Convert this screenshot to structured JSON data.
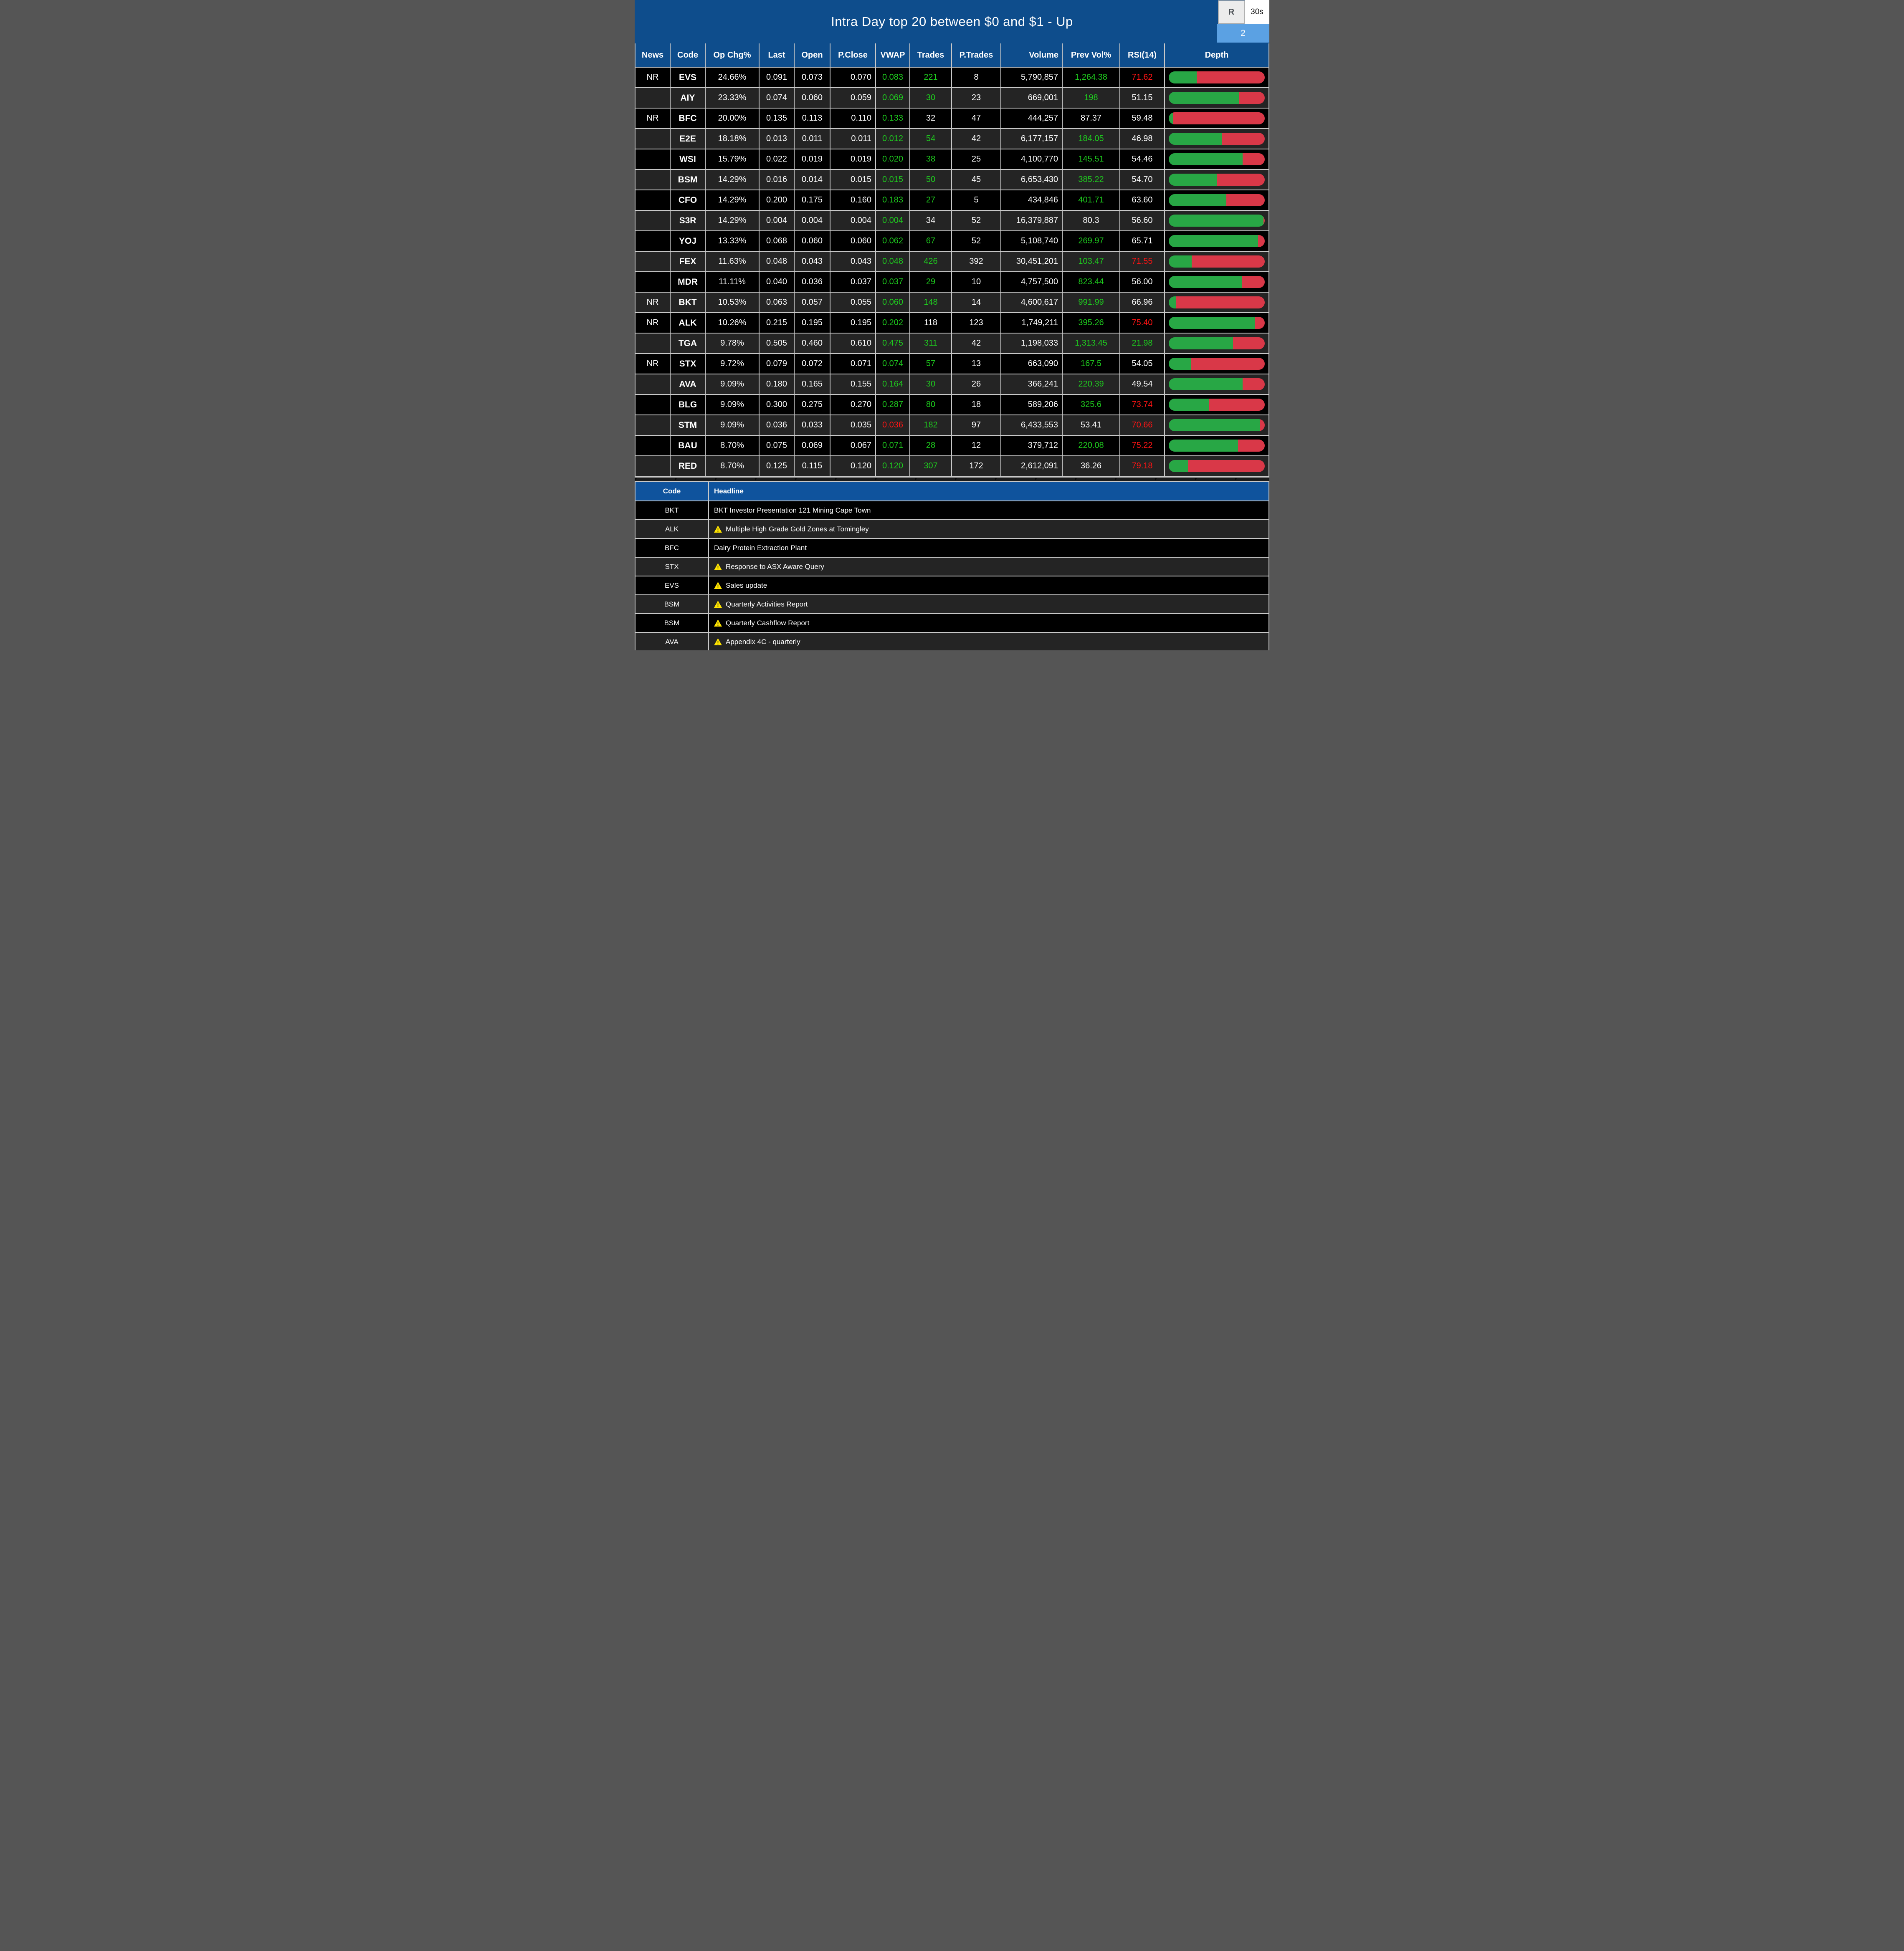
{
  "title": "Intra Day top 20 between $0 and $1 - Up",
  "toolbar": {
    "refresh_label": "R",
    "interval_label": "30s",
    "badge_count": "2"
  },
  "colors": {
    "title_blue": "#0e4d8c",
    "panel_header_blue": "#0f539d",
    "green_text": "#1ecb1e",
    "red_text": "#ff1414",
    "bar_green": "#28a745",
    "bar_red": "#d93848",
    "badge_blue": "#5ba1e3",
    "grid_gray": "#c8c8c8",
    "row_dark": "#000000",
    "row_light": "#242424",
    "warning_yellow": "#ffe400"
  },
  "table": {
    "columns": [
      "News",
      "Code",
      "Op Chg%",
      "Last",
      "Open",
      "P.Close",
      "VWAP",
      "Trades",
      "P.Trades",
      "Volume",
      "Prev Vol%",
      "RSI(14)",
      "Depth"
    ],
    "rows": [
      {
        "news": "NR",
        "code": "EVS",
        "op_chg": "24.66%",
        "last": "0.091",
        "open": "0.073",
        "p_close": "0.070",
        "vwap": "0.083",
        "vwap_color": "green",
        "trades": "221",
        "trades_color": "green",
        "p_trades": "8",
        "volume": "5,790,857",
        "prev_vol": "1,264.38",
        "prev_vol_color": "green",
        "rsi": "71.62",
        "rsi_color": "red",
        "depth_buy_pct": 29
      },
      {
        "news": "",
        "code": "AIY",
        "op_chg": "23.33%",
        "last": "0.074",
        "open": "0.060",
        "p_close": "0.059",
        "vwap": "0.069",
        "vwap_color": "green",
        "trades": "30",
        "trades_color": "green",
        "p_trades": "23",
        "volume": "669,001",
        "prev_vol": "198",
        "prev_vol_color": "green",
        "rsi": "51.15",
        "rsi_color": "",
        "depth_buy_pct": 73
      },
      {
        "news": "NR",
        "code": "BFC",
        "op_chg": "20.00%",
        "last": "0.135",
        "open": "0.113",
        "p_close": "0.110",
        "vwap": "0.133",
        "vwap_color": "green",
        "trades": "32",
        "trades_color": "",
        "p_trades": "47",
        "volume": "444,257",
        "prev_vol": "87.37",
        "prev_vol_color": "",
        "rsi": "59.48",
        "rsi_color": "",
        "depth_buy_pct": 4.5
      },
      {
        "news": "",
        "code": "E2E",
        "op_chg": "18.18%",
        "last": "0.013",
        "open": "0.011",
        "p_close": "0.011",
        "vwap": "0.012",
        "vwap_color": "green",
        "trades": "54",
        "trades_color": "green",
        "p_trades": "42",
        "volume": "6,177,157",
        "prev_vol": "184.05",
        "prev_vol_color": "green",
        "rsi": "46.98",
        "rsi_color": "",
        "depth_buy_pct": 55
      },
      {
        "news": "",
        "code": "WSI",
        "op_chg": "15.79%",
        "last": "0.022",
        "open": "0.019",
        "p_close": "0.019",
        "vwap": "0.020",
        "vwap_color": "green",
        "trades": "38",
        "trades_color": "green",
        "p_trades": "25",
        "volume": "4,100,770",
        "prev_vol": "145.51",
        "prev_vol_color": "green",
        "rsi": "54.46",
        "rsi_color": "",
        "depth_buy_pct": 77
      },
      {
        "news": "",
        "code": "BSM",
        "op_chg": "14.29%",
        "last": "0.016",
        "open": "0.014",
        "p_close": "0.015",
        "vwap": "0.015",
        "vwap_color": "green",
        "trades": "50",
        "trades_color": "green",
        "p_trades": "45",
        "volume": "6,653,430",
        "prev_vol": "385.22",
        "prev_vol_color": "green",
        "rsi": "54.70",
        "rsi_color": "",
        "depth_buy_pct": 50
      },
      {
        "news": "",
        "code": "CFO",
        "op_chg": "14.29%",
        "last": "0.200",
        "open": "0.175",
        "p_close": "0.160",
        "vwap": "0.183",
        "vwap_color": "green",
        "trades": "27",
        "trades_color": "green",
        "p_trades": "5",
        "volume": "434,846",
        "prev_vol": "401.71",
        "prev_vol_color": "green",
        "rsi": "63.60",
        "rsi_color": "",
        "depth_buy_pct": 60
      },
      {
        "news": "",
        "code": "S3R",
        "op_chg": "14.29%",
        "last": "0.004",
        "open": "0.004",
        "p_close": "0.004",
        "vwap": "0.004",
        "vwap_color": "green",
        "trades": "34",
        "trades_color": "",
        "p_trades": "52",
        "volume": "16,379,887",
        "prev_vol": "80.3",
        "prev_vol_color": "",
        "rsi": "56.60",
        "rsi_color": "",
        "depth_buy_pct": 98.5
      },
      {
        "news": "",
        "code": "YOJ",
        "op_chg": "13.33%",
        "last": "0.068",
        "open": "0.060",
        "p_close": "0.060",
        "vwap": "0.062",
        "vwap_color": "green",
        "trades": "67",
        "trades_color": "green",
        "p_trades": "52",
        "volume": "5,108,740",
        "prev_vol": "269.97",
        "prev_vol_color": "green",
        "rsi": "65.71",
        "rsi_color": "",
        "depth_buy_pct": 93
      },
      {
        "news": "",
        "code": "FEX",
        "op_chg": "11.63%",
        "last": "0.048",
        "open": "0.043",
        "p_close": "0.043",
        "vwap": "0.048",
        "vwap_color": "green",
        "trades": "426",
        "trades_color": "green",
        "p_trades": "392",
        "volume": "30,451,201",
        "prev_vol": "103.47",
        "prev_vol_color": "green",
        "rsi": "71.55",
        "rsi_color": "red",
        "depth_buy_pct": 24
      },
      {
        "news": "",
        "code": "MDR",
        "op_chg": "11.11%",
        "last": "0.040",
        "open": "0.036",
        "p_close": "0.037",
        "vwap": "0.037",
        "vwap_color": "green",
        "trades": "29",
        "trades_color": "green",
        "p_trades": "10",
        "volume": "4,757,500",
        "prev_vol": "823.44",
        "prev_vol_color": "green",
        "rsi": "56.00",
        "rsi_color": "",
        "depth_buy_pct": 76
      },
      {
        "news": "NR",
        "code": "BKT",
        "op_chg": "10.53%",
        "last": "0.063",
        "open": "0.057",
        "p_close": "0.055",
        "vwap": "0.060",
        "vwap_color": "green",
        "trades": "148",
        "trades_color": "green",
        "p_trades": "14",
        "volume": "4,600,617",
        "prev_vol": "991.99",
        "prev_vol_color": "green",
        "rsi": "66.96",
        "rsi_color": "",
        "depth_buy_pct": 8
      },
      {
        "news": "NR",
        "code": "ALK",
        "op_chg": "10.26%",
        "last": "0.215",
        "open": "0.195",
        "p_close": "0.195",
        "vwap": "0.202",
        "vwap_color": "green",
        "trades": "118",
        "trades_color": "",
        "p_trades": "123",
        "volume": "1,749,211",
        "prev_vol": "395.26",
        "prev_vol_color": "green",
        "rsi": "75.40",
        "rsi_color": "red",
        "depth_buy_pct": 90
      },
      {
        "news": "",
        "code": "TGA",
        "op_chg": "9.78%",
        "last": "0.505",
        "open": "0.460",
        "p_close": "0.610",
        "vwap": "0.475",
        "vwap_color": "green",
        "trades": "311",
        "trades_color": "green",
        "p_trades": "42",
        "volume": "1,198,033",
        "prev_vol": "1,313.45",
        "prev_vol_color": "green",
        "rsi": "21.98",
        "rsi_color": "green",
        "depth_buy_pct": 67
      },
      {
        "news": "NR",
        "code": "STX",
        "op_chg": "9.72%",
        "last": "0.079",
        "open": "0.072",
        "p_close": "0.071",
        "vwap": "0.074",
        "vwap_color": "green",
        "trades": "57",
        "trades_color": "green",
        "p_trades": "13",
        "volume": "663,090",
        "prev_vol": "167.5",
        "prev_vol_color": "green",
        "rsi": "54.05",
        "rsi_color": "",
        "depth_buy_pct": 23
      },
      {
        "news": "",
        "code": "AVA",
        "op_chg": "9.09%",
        "last": "0.180",
        "open": "0.165",
        "p_close": "0.155",
        "vwap": "0.164",
        "vwap_color": "green",
        "trades": "30",
        "trades_color": "green",
        "p_trades": "26",
        "volume": "366,241",
        "prev_vol": "220.39",
        "prev_vol_color": "green",
        "rsi": "49.54",
        "rsi_color": "",
        "depth_buy_pct": 77
      },
      {
        "news": "",
        "code": "BLG",
        "op_chg": "9.09%",
        "last": "0.300",
        "open": "0.275",
        "p_close": "0.270",
        "vwap": "0.287",
        "vwap_color": "green",
        "trades": "80",
        "trades_color": "green",
        "p_trades": "18",
        "volume": "589,206",
        "prev_vol": "325.6",
        "prev_vol_color": "green",
        "rsi": "73.74",
        "rsi_color": "red",
        "depth_buy_pct": 42
      },
      {
        "news": "",
        "code": "STM",
        "op_chg": "9.09%",
        "last": "0.036",
        "open": "0.033",
        "p_close": "0.035",
        "vwap": "0.036",
        "vwap_color": "red",
        "trades": "182",
        "trades_color": "green",
        "p_trades": "97",
        "volume": "6,433,553",
        "prev_vol": "53.41",
        "prev_vol_color": "",
        "rsi": "70.66",
        "rsi_color": "red",
        "depth_buy_pct": 95
      },
      {
        "news": "",
        "code": "BAU",
        "op_chg": "8.70%",
        "last": "0.075",
        "open": "0.069",
        "p_close": "0.067",
        "vwap": "0.071",
        "vwap_color": "green",
        "trades": "28",
        "trades_color": "green",
        "p_trades": "12",
        "volume": "379,712",
        "prev_vol": "220.08",
        "prev_vol_color": "green",
        "rsi": "75.22",
        "rsi_color": "red",
        "depth_buy_pct": 72
      },
      {
        "news": "",
        "code": "RED",
        "op_chg": "8.70%",
        "last": "0.125",
        "open": "0.115",
        "p_close": "0.120",
        "vwap": "0.120",
        "vwap_color": "green",
        "trades": "307",
        "trades_color": "green",
        "p_trades": "172",
        "volume": "2,612,091",
        "prev_vol": "36.26",
        "prev_vol_color": "",
        "rsi": "79.18",
        "rsi_color": "red",
        "depth_buy_pct": 20
      }
    ]
  },
  "news_panel": {
    "columns": [
      "Code",
      "Headline"
    ],
    "rows": [
      {
        "code": "BKT",
        "headline": "BKT Investor Presentation 121 Mining Cape Town",
        "warning": false
      },
      {
        "code": "ALK",
        "headline": "Multiple High Grade Gold Zones at Tomingley",
        "warning": true
      },
      {
        "code": "BFC",
        "headline": "Dairy Protein Extraction Plant",
        "warning": false
      },
      {
        "code": "STX",
        "headline": "Response to ASX Aware Query",
        "warning": true
      },
      {
        "code": "EVS",
        "headline": "Sales update",
        "warning": true
      },
      {
        "code": "BSM",
        "headline": "Quarterly Activities Report",
        "warning": true
      },
      {
        "code": "BSM",
        "headline": "Quarterly Cashflow Report",
        "warning": true
      },
      {
        "code": "AVA",
        "headline": "Appendix 4C - quarterly",
        "warning": true
      }
    ]
  }
}
